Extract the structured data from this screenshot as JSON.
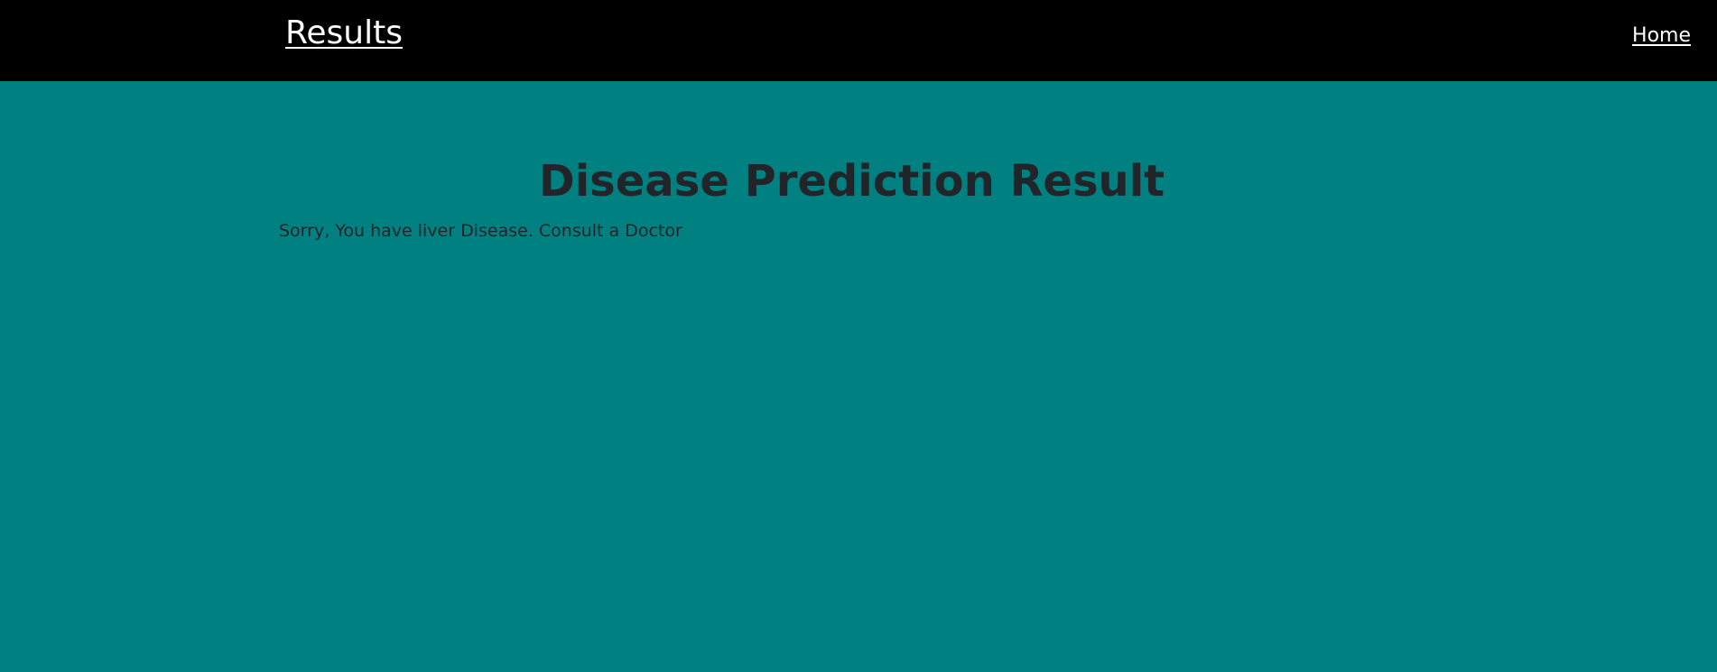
{
  "header": {
    "brand": "Results",
    "nav_home": "Home"
  },
  "main": {
    "title": "Disease Prediction Result",
    "message": "Sorry, You have liver Disease. Consult a Doctor"
  },
  "colors": {
    "navbar_bg": "#000000",
    "page_bg": "#008080",
    "nav_text": "#ffffff",
    "body_text": "#212529"
  }
}
